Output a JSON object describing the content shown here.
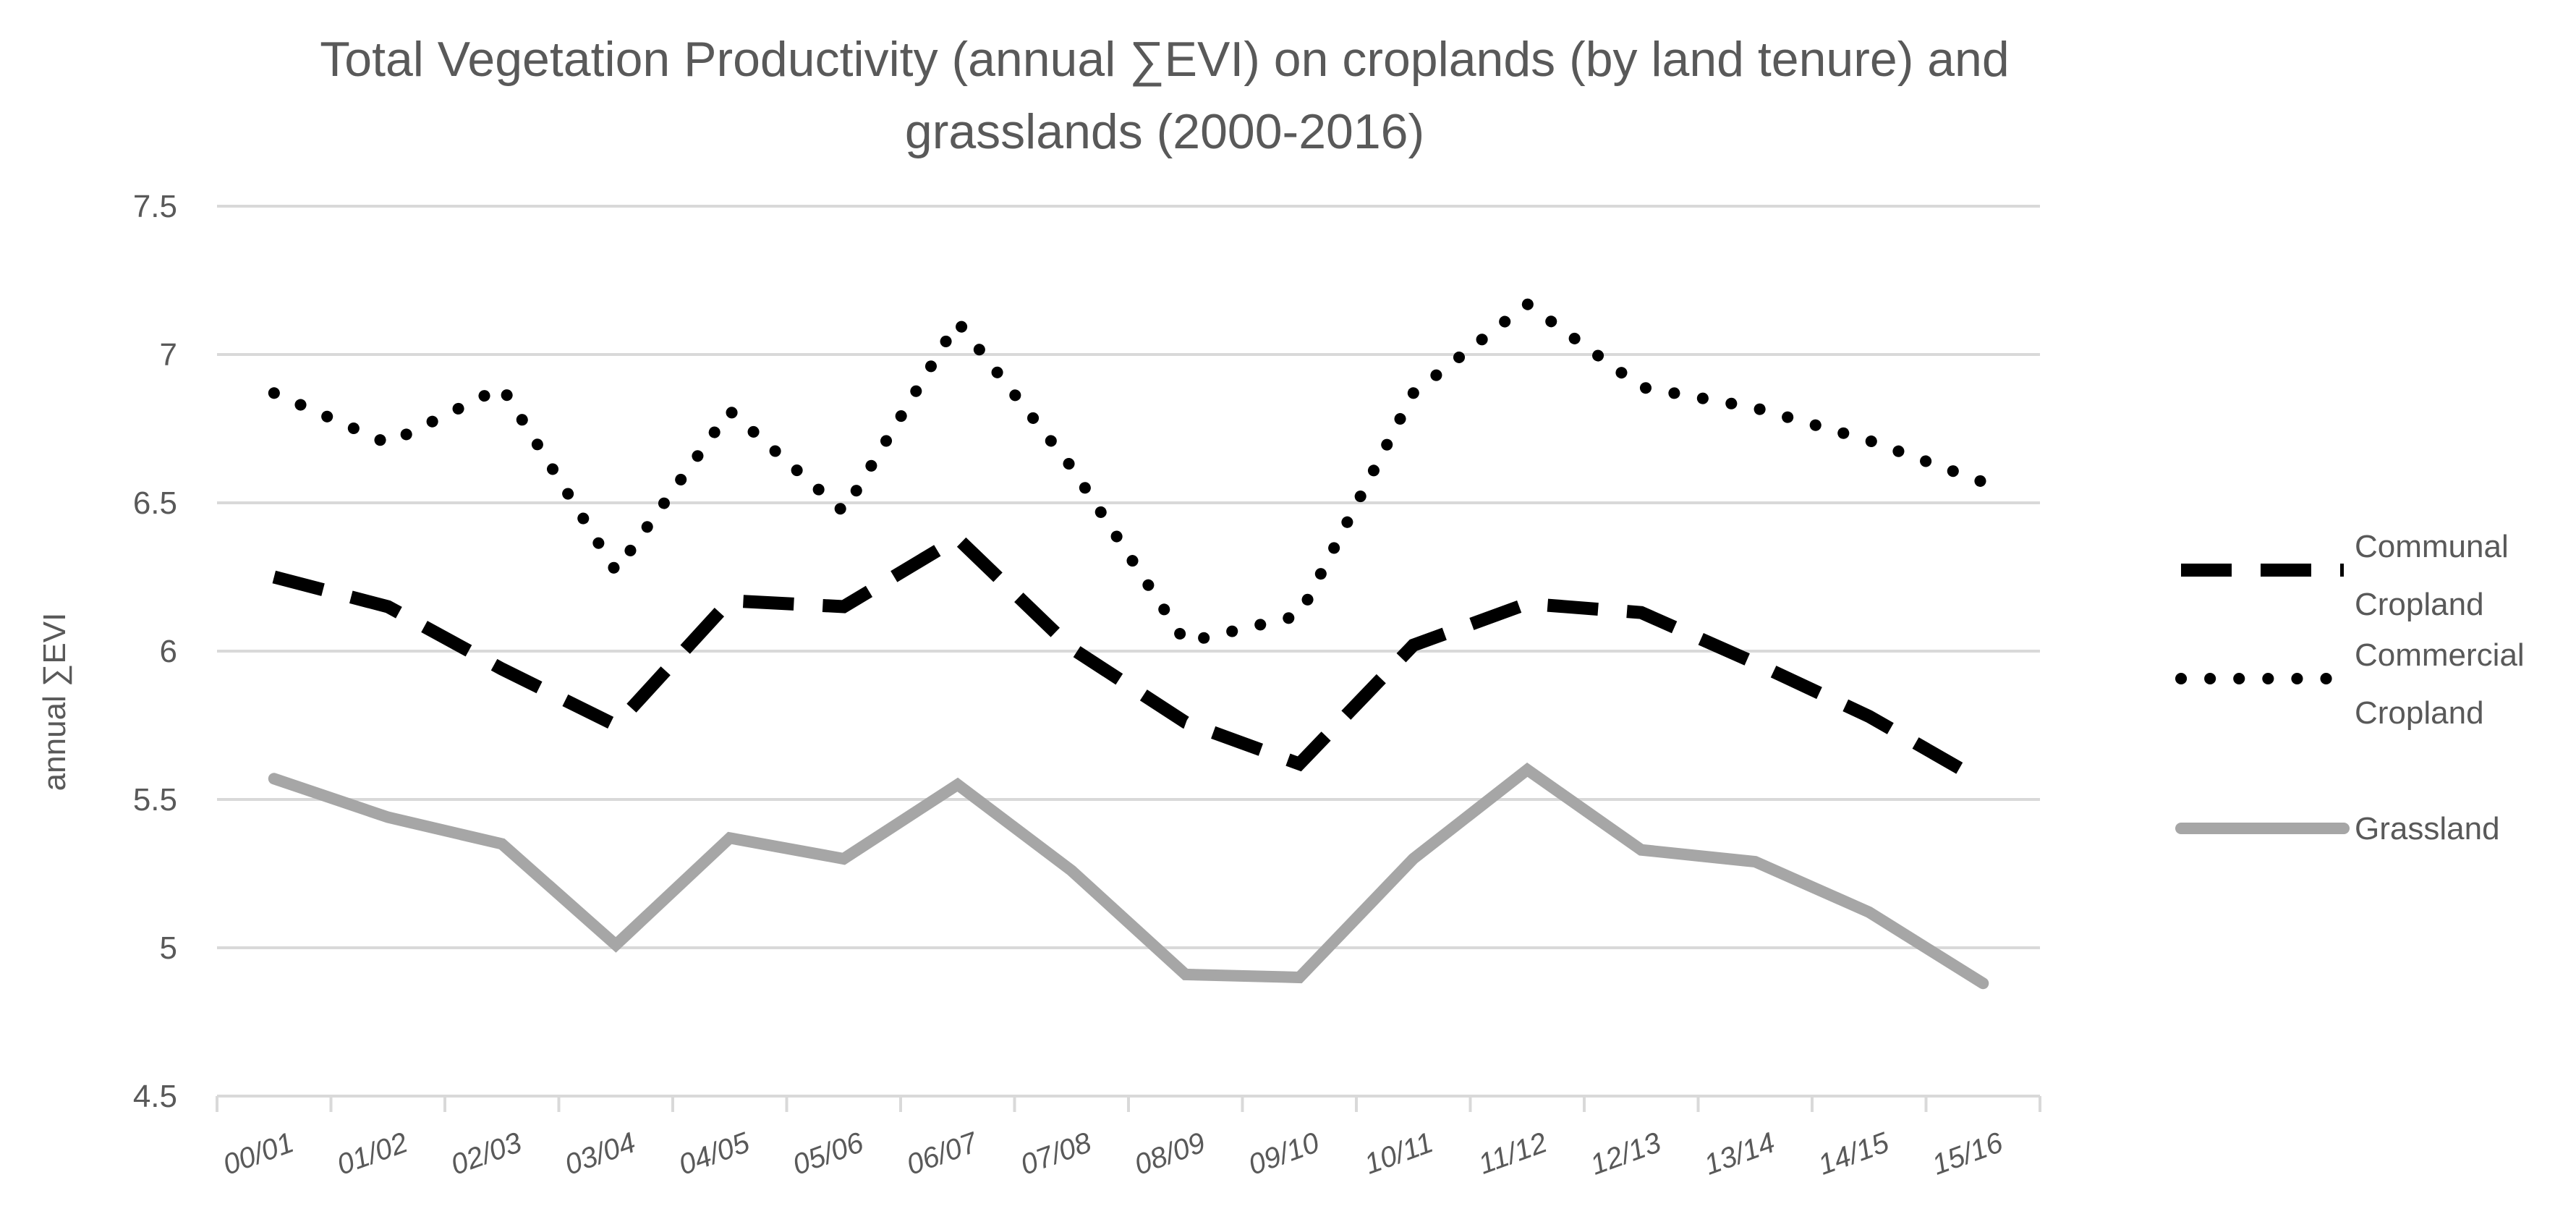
{
  "chart_data": {
    "type": "line",
    "title_lines": [
      "Total Vegetation Productivity (annual ∑EVI) on croplands (by land tenure) and",
      "grasslands (2000-2016)"
    ],
    "xlabel": "",
    "ylabel": "annual ∑EVI",
    "ylim": [
      4.5,
      7.5
    ],
    "yticks": [
      4.5,
      5,
      5.5,
      6,
      6.5,
      7,
      7.5
    ],
    "ytick_labels": [
      "4.5",
      "5",
      "5.5",
      "6",
      "6.5",
      "7",
      "7.5"
    ],
    "grid": true,
    "legend_position": "right",
    "categories": [
      "00/01",
      "01/02",
      "02/03",
      "03/04",
      "04/05",
      "05/06",
      "06/07",
      "07/08",
      "08/09",
      "09/10",
      "10/11",
      "11/12",
      "12/13",
      "13/14",
      "14/15",
      "15/16"
    ],
    "series": [
      {
        "name": "Communal Cropland",
        "legend_lines": [
          "Communal",
          "Cropland"
        ],
        "style": "dashed",
        "color": "#000000",
        "values": [
          6.25,
          6.15,
          5.94,
          5.75,
          6.17,
          6.15,
          6.38,
          6.01,
          5.76,
          5.62,
          6.02,
          6.16,
          6.13,
          5.96,
          5.78,
          5.56
        ]
      },
      {
        "name": "Commercial Cropland",
        "legend_lines": [
          "Commercial",
          "Cropland"
        ],
        "style": "dotted",
        "color": "#000000",
        "values": [
          6.87,
          6.7,
          6.89,
          6.27,
          6.81,
          6.47,
          7.11,
          6.62,
          6.03,
          6.12,
          6.87,
          7.17,
          6.89,
          6.82,
          6.71,
          6.57
        ]
      },
      {
        "name": "Grassland",
        "legend_lines": [
          "Grassland"
        ],
        "style": "solid",
        "color": "#a6a6a6",
        "values": [
          5.57,
          5.44,
          5.35,
          5.01,
          5.37,
          5.3,
          5.55,
          5.26,
          4.91,
          4.9,
          5.3,
          5.6,
          5.33,
          5.29,
          5.12,
          4.88
        ]
      }
    ]
  },
  "colors": {
    "grid": "#d9d9d9",
    "text": "#595959",
    "background": "#ffffff"
  }
}
